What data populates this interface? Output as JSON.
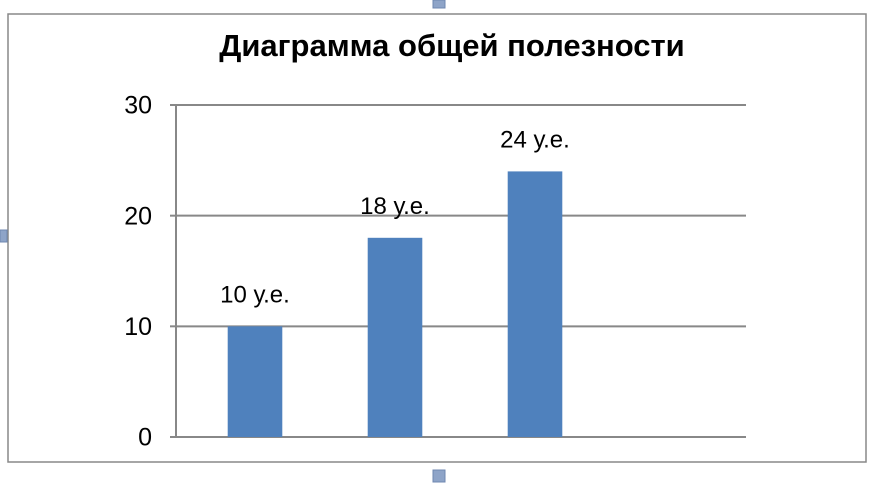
{
  "chart_data": {
    "type": "bar",
    "title": "Диаграмма общей полезности",
    "categories": [
      null,
      null,
      null,
      null
    ],
    "values": [
      10,
      18,
      24,
      null
    ],
    "value_labels": [
      "10 у.е.",
      "18 у.е.",
      "24 у.е.",
      null
    ],
    "color": "#4f81bd",
    "ylim": [
      0,
      30
    ],
    "yticks": [
      0,
      10,
      20,
      30
    ],
    "grid": true
  }
}
